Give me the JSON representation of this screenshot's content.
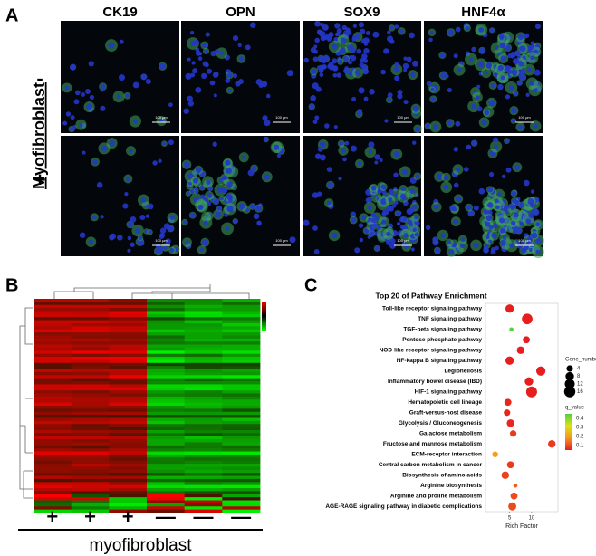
{
  "panel_a": {
    "label": "A",
    "columns": [
      "CK19",
      "OPN",
      "SOX9",
      "HNF4α"
    ],
    "row_title": "Myofibroblast",
    "row_labels": [
      "-",
      "+"
    ],
    "scale_bar": "100 μm"
  },
  "panel_b": {
    "label": "B",
    "column_signs": [
      "+",
      "+",
      "+",
      "—",
      "—",
      "—"
    ],
    "x_label": "myofibroblast"
  },
  "panel_c": {
    "label": "C"
  },
  "chart_data": {
    "type": "scatter",
    "title": "Top 20 of Pathway Enrichment",
    "x_label": "Rich Factor",
    "categories": [
      "Toll-like receptor signaling pathway",
      "TNF signaling pathway",
      "TGF-beta signaling pathway",
      "Pentose phosphate pathway",
      "NOD-like receptor signaling pathway",
      "NF-kappa B signaling pathway",
      "Legionellosis",
      "Inflammatory bowel disease (IBD)",
      "HIF-1 signaling pathway",
      "Hematopoietic cell lineage",
      "Graft-versus-host disease",
      "Glycolysis / Gluconeogenesis",
      "Galactose metabolism",
      "Fructose and mannose metabolism",
      "ECM-receptor interaction",
      "Central carbon metabolism in cancer",
      "Biosynthesis of amino acids",
      "Arginine biosynthesis",
      "Arginine and proline metabolism",
      "AGE-RAGE signaling pathway in diabetic complications"
    ],
    "values": [
      5.0,
      9.0,
      5.4,
      8.8,
      7.5,
      5.0,
      12.1,
      9.4,
      10.0,
      4.6,
      4.4,
      5.2,
      5.8,
      14.6,
      1.7,
      5.2,
      4.0,
      6.3,
      6.0,
      5.6
    ],
    "sizes": [
      8,
      14,
      1,
      5,
      6,
      8,
      10,
      8,
      15,
      5,
      4,
      6,
      4,
      6,
      3,
      5,
      6,
      1,
      5,
      7
    ],
    "q_values": [
      0.05,
      0.05,
      0.45,
      0.05,
      0.05,
      0.05,
      0.05,
      0.05,
      0.05,
      0.06,
      0.06,
      0.06,
      0.08,
      0.08,
      0.2,
      0.08,
      0.09,
      0.12,
      0.1,
      0.1
    ],
    "xlim": [
      -0.5,
      16
    ],
    "xticks": [
      5,
      10
    ],
    "size_title": "Gene_number",
    "size_ticks": [
      4,
      8,
      12,
      16
    ],
    "color_title": "q_value",
    "color_ticks": [
      0.4,
      0.3,
      0.2,
      0.1
    ],
    "color_lim": [
      0.05,
      0.45
    ]
  }
}
